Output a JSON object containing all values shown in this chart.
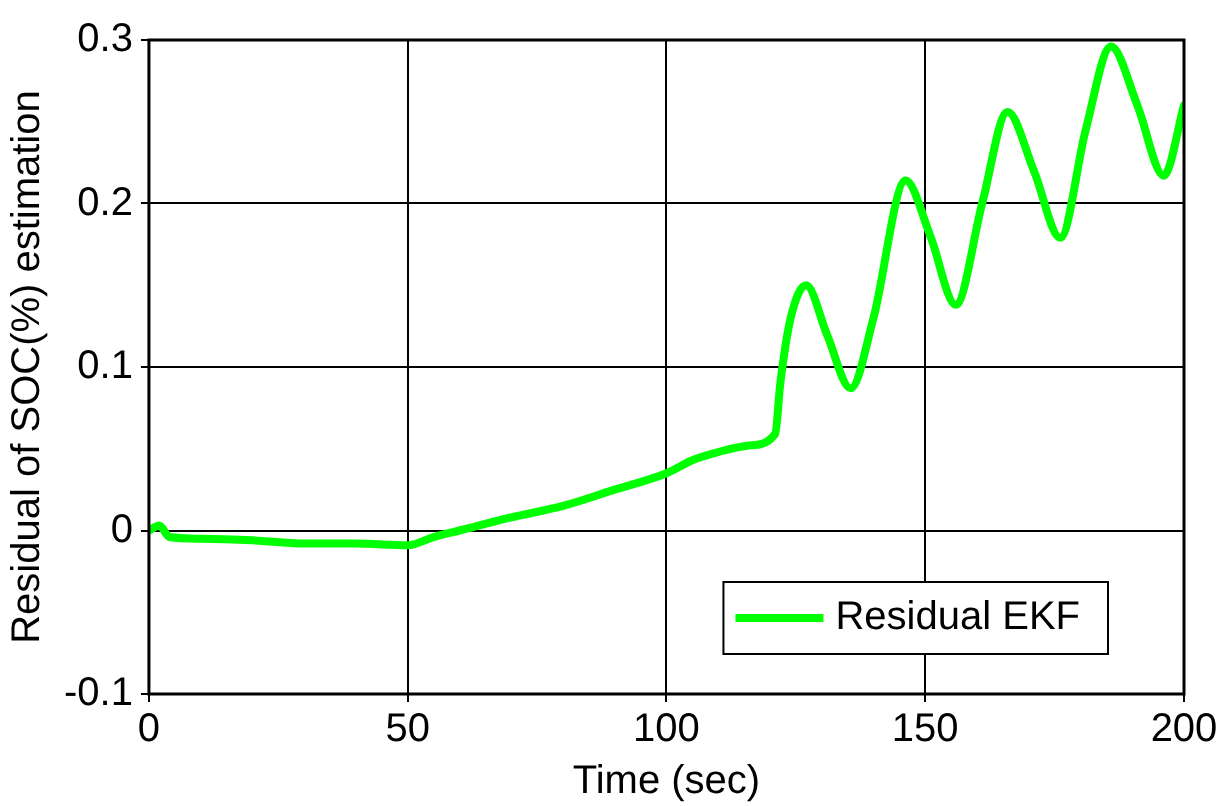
{
  "chart_data": {
    "type": "line",
    "xlabel": "Time (sec)",
    "ylabel": "Residual of SOC(%) estimation",
    "xlim": [
      0,
      200
    ],
    "ylim": [
      -0.1,
      0.3
    ],
    "xticks": [
      0,
      50,
      100,
      150,
      200
    ],
    "yticks": [
      -0.1,
      0,
      0.1,
      0.2,
      0.3
    ],
    "grid": true,
    "legend": "bottom right",
    "marker": "none",
    "line_style": "solid",
    "series": [
      {
        "name": "Residual EKF",
        "color": "#00ff00",
        "x": [
          0,
          2,
          4,
          10,
          20,
          30,
          40,
          50,
          55,
          60,
          70,
          80,
          90,
          100,
          105,
          110,
          116,
          121,
          122,
          124,
          127,
          131,
          135.6,
          140,
          146.2,
          151,
          155.9,
          161,
          165.9,
          171,
          176.1,
          181,
          185.9,
          191,
          196.1,
          200
        ],
        "values": [
          0,
          0.003,
          -0.004,
          -0.005,
          -0.006,
          -0.008,
          -0.008,
          -0.009,
          -0.004,
          0,
          0.008,
          0.015,
          0.025,
          0.035,
          0.043,
          0.048,
          0.052,
          0.059,
          0.09,
          0.13,
          0.15,
          0.12,
          0.087,
          0.13,
          0.214,
          0.18,
          0.138,
          0.2,
          0.256,
          0.22,
          0.179,
          0.245,
          0.296,
          0.26,
          0.217,
          0.26
        ]
      }
    ]
  }
}
